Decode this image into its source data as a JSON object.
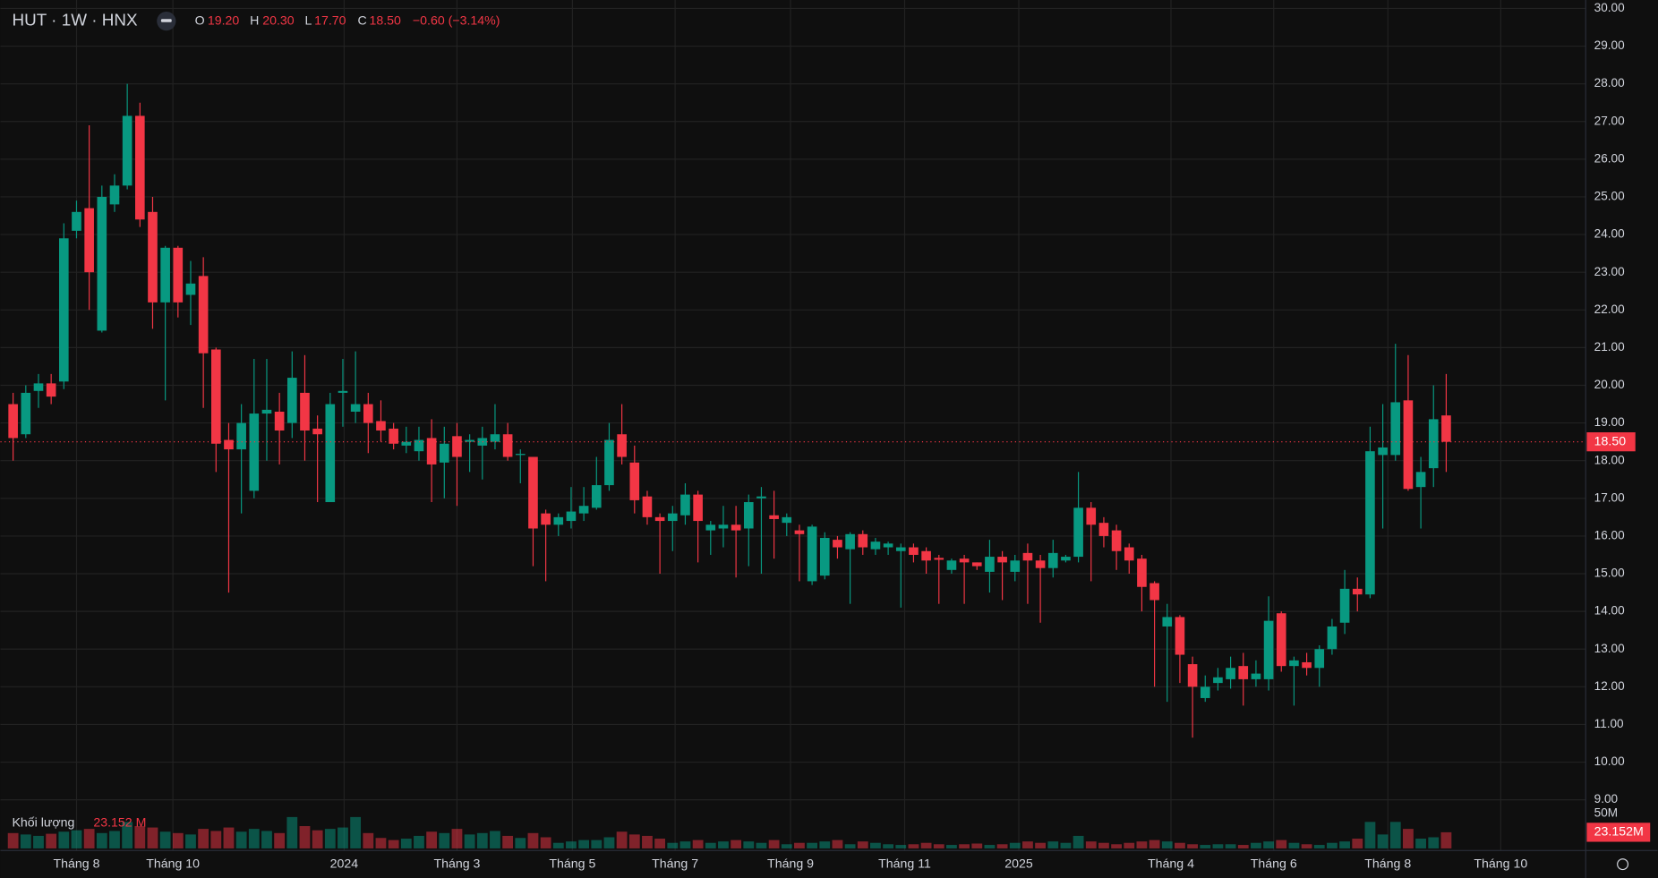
{
  "header": {
    "symbol": "HUT · 1W · HNX",
    "o_label": "O",
    "o": "19.20",
    "h_label": "H",
    "h": "20.30",
    "l_label": "L",
    "l": "17.70",
    "c_label": "C",
    "c": "18.50",
    "change": "−0.60 (−3.14%)",
    "volume_title": "Khối lượng",
    "volume_value": "23.152 M",
    "volume_axis_value": "23.152M"
  },
  "chart_data": {
    "type": "candlestick",
    "up_color": "#089981",
    "down_color": "#f23645",
    "grid": true,
    "ylim": [
      9,
      30
    ],
    "yticks": [
      {
        "value": 9,
        "label": "9.00"
      },
      {
        "value": 10,
        "label": "10.00"
      },
      {
        "value": 11,
        "label": "11.00"
      },
      {
        "value": 12,
        "label": "12.00"
      },
      {
        "value": 13,
        "label": "13.00"
      },
      {
        "value": 14,
        "label": "14.00"
      },
      {
        "value": 15,
        "label": "15.00"
      },
      {
        "value": 16,
        "label": "16.00"
      },
      {
        "value": 17,
        "label": "17.00"
      },
      {
        "value": 18,
        "label": "18.00"
      },
      {
        "value": 19,
        "label": "19.00"
      },
      {
        "value": 20,
        "label": "20.00"
      },
      {
        "value": 21,
        "label": "21.00"
      },
      {
        "value": 22,
        "label": "22.00"
      },
      {
        "value": 23,
        "label": "23.00"
      },
      {
        "value": 24,
        "label": "24.00"
      },
      {
        "value": 25,
        "label": "25.00"
      },
      {
        "value": 26,
        "label": "26.00"
      },
      {
        "value": 27,
        "label": "27.00"
      },
      {
        "value": 28,
        "label": "28.00"
      },
      {
        "value": 29,
        "label": "29.00"
      },
      {
        "value": 30,
        "label": "30.00"
      }
    ],
    "xlim": [
      -1,
      124
    ],
    "xticks": [
      {
        "value": 5,
        "label": "Tháng 8"
      },
      {
        "value": 12.6,
        "label": "Tháng 10"
      },
      {
        "value": 26.1,
        "label": "2024"
      },
      {
        "value": 35,
        "label": "Tháng 3"
      },
      {
        "value": 44.1,
        "label": "Tháng 5"
      },
      {
        "value": 52.2,
        "label": "Tháng 7"
      },
      {
        "value": 61.3,
        "label": "Tháng 9"
      },
      {
        "value": 70.3,
        "label": "Tháng 11"
      },
      {
        "value": 79.3,
        "label": "2025"
      },
      {
        "value": 91.3,
        "label": "Tháng 4"
      },
      {
        "value": 99.4,
        "label": "Tháng 6"
      },
      {
        "value": 108.4,
        "label": "Tháng 8"
      },
      {
        "value": 117.3,
        "label": "Tháng 10"
      }
    ],
    "volume_ylim": [
      0,
      50
    ],
    "volume_ticks": [
      {
        "value": 50,
        "label": "50M"
      }
    ],
    "ohlc": [
      [
        19.5,
        19.8,
        18.0,
        18.6
      ],
      [
        18.7,
        20.0,
        18.6,
        19.8
      ],
      [
        19.85,
        20.3,
        19.4,
        20.05
      ],
      [
        20.05,
        20.3,
        19.5,
        19.7
      ],
      [
        20.1,
        24.3,
        19.9,
        23.9
      ],
      [
        24.1,
        24.9,
        23.9,
        24.6
      ],
      [
        24.7,
        26.9,
        22.0,
        23.0
      ],
      [
        21.45,
        25.3,
        21.4,
        25.0
      ],
      [
        24.8,
        25.6,
        24.6,
        25.3
      ],
      [
        25.3,
        28.0,
        25.2,
        27.15
      ],
      [
        27.15,
        27.5,
        24.2,
        24.4
      ],
      [
        24.6,
        25.0,
        21.5,
        22.2
      ],
      [
        22.2,
        23.7,
        19.6,
        23.65
      ],
      [
        23.65,
        23.7,
        21.8,
        22.2
      ],
      [
        22.4,
        23.3,
        21.6,
        22.7
      ],
      [
        22.9,
        23.4,
        19.4,
        20.85
      ],
      [
        20.95,
        21.0,
        17.7,
        18.45
      ],
      [
        18.55,
        19.0,
        14.5,
        18.3
      ],
      [
        18.3,
        19.5,
        16.6,
        19.0
      ],
      [
        17.2,
        20.7,
        17.0,
        19.25
      ],
      [
        19.25,
        20.7,
        18.0,
        19.35
      ],
      [
        19.3,
        19.8,
        17.9,
        18.8
      ],
      [
        19.0,
        20.9,
        18.6,
        20.2
      ],
      [
        19.8,
        20.8,
        18.0,
        18.8
      ],
      [
        18.85,
        19.2,
        16.9,
        18.7
      ],
      [
        16.9,
        19.8,
        16.9,
        19.5
      ],
      [
        19.8,
        20.7,
        18.9,
        19.85
      ],
      [
        19.3,
        20.9,
        19.0,
        19.5
      ],
      [
        19.5,
        19.8,
        18.2,
        19.0
      ],
      [
        19.05,
        19.6,
        18.5,
        18.8
      ],
      [
        18.85,
        19.0,
        18.3,
        18.45
      ],
      [
        18.4,
        18.9,
        18.2,
        18.5
      ],
      [
        18.25,
        18.9,
        18.0,
        18.55
      ],
      [
        18.6,
        19.1,
        16.9,
        17.9
      ],
      [
        17.95,
        18.9,
        17.0,
        18.45
      ],
      [
        18.65,
        19.0,
        16.8,
        18.1
      ],
      [
        18.5,
        18.7,
        17.7,
        18.55
      ],
      [
        18.4,
        18.9,
        17.5,
        18.6
      ],
      [
        18.5,
        19.5,
        18.3,
        18.7
      ],
      [
        18.7,
        19.0,
        18.0,
        18.1
      ],
      [
        18.15,
        18.3,
        17.4,
        18.18
      ],
      [
        18.1,
        18.1,
        15.2,
        16.2
      ],
      [
        16.6,
        16.7,
        14.8,
        16.3
      ],
      [
        16.3,
        16.6,
        16.0,
        16.5
      ],
      [
        16.4,
        17.3,
        16.2,
        16.65
      ],
      [
        16.6,
        17.3,
        16.4,
        16.8
      ],
      [
        16.75,
        18.1,
        16.7,
        17.35
      ],
      [
        17.35,
        19.0,
        17.2,
        18.55
      ],
      [
        18.7,
        19.5,
        17.9,
        18.1
      ],
      [
        17.95,
        18.4,
        16.6,
        16.95
      ],
      [
        17.05,
        17.2,
        16.3,
        16.5
      ],
      [
        16.5,
        16.6,
        15.0,
        16.4
      ],
      [
        16.4,
        16.8,
        15.6,
        16.6
      ],
      [
        16.55,
        17.4,
        16.3,
        17.1
      ],
      [
        17.1,
        17.2,
        15.3,
        16.4
      ],
      [
        16.15,
        16.4,
        15.5,
        16.3
      ],
      [
        16.2,
        16.8,
        15.7,
        16.3
      ],
      [
        16.3,
        16.8,
        14.9,
        16.15
      ],
      [
        16.2,
        17.1,
        15.2,
        16.9
      ],
      [
        17.0,
        17.3,
        15.0,
        17.05
      ],
      [
        16.55,
        17.2,
        15.4,
        16.45
      ],
      [
        16.35,
        16.6,
        16.0,
        16.5
      ],
      [
        16.15,
        16.3,
        14.8,
        16.05
      ],
      [
        14.8,
        16.3,
        14.7,
        16.25
      ],
      [
        14.95,
        16.1,
        14.85,
        15.95
      ],
      [
        15.9,
        16.0,
        15.4,
        15.7
      ],
      [
        15.65,
        16.1,
        14.2,
        16.05
      ],
      [
        16.05,
        16.15,
        15.5,
        15.7
      ],
      [
        15.65,
        15.95,
        15.5,
        15.85
      ],
      [
        15.7,
        15.85,
        15.5,
        15.8
      ],
      [
        15.6,
        15.8,
        14.1,
        15.7
      ],
      [
        15.7,
        15.8,
        15.3,
        15.5
      ],
      [
        15.6,
        15.7,
        15.0,
        15.35
      ],
      [
        15.42,
        15.5,
        14.2,
        15.37
      ],
      [
        15.1,
        15.4,
        15.0,
        15.35
      ],
      [
        15.4,
        15.5,
        14.2,
        15.3
      ],
      [
        15.3,
        15.3,
        15.1,
        15.2
      ],
      [
        15.05,
        15.9,
        14.5,
        15.45
      ],
      [
        15.45,
        15.6,
        14.3,
        15.3
      ],
      [
        15.05,
        15.5,
        14.8,
        15.35
      ],
      [
        15.55,
        15.8,
        14.2,
        15.35
      ],
      [
        15.35,
        15.5,
        13.7,
        15.15
      ],
      [
        15.15,
        15.9,
        14.9,
        15.55
      ],
      [
        15.35,
        15.5,
        15.3,
        15.45
      ],
      [
        15.45,
        17.7,
        15.3,
        16.75
      ],
      [
        16.75,
        16.9,
        14.8,
        16.3
      ],
      [
        16.35,
        16.5,
        15.7,
        16.0
      ],
      [
        16.15,
        16.3,
        15.1,
        15.6
      ],
      [
        15.7,
        15.8,
        15.0,
        15.35
      ],
      [
        15.4,
        15.5,
        14.0,
        14.65
      ],
      [
        14.75,
        14.8,
        12.0,
        14.3
      ],
      [
        13.6,
        14.2,
        11.6,
        13.85
      ],
      [
        13.85,
        13.9,
        12.1,
        12.85
      ],
      [
        12.6,
        12.8,
        10.65,
        12.0
      ],
      [
        11.7,
        12.3,
        11.6,
        12.0
      ],
      [
        12.1,
        12.5,
        11.9,
        12.25
      ],
      [
        12.2,
        12.8,
        11.95,
        12.5
      ],
      [
        12.55,
        12.9,
        11.5,
        12.2
      ],
      [
        12.2,
        12.7,
        12.0,
        12.35
      ],
      [
        12.2,
        14.4,
        11.9,
        13.75
      ],
      [
        13.95,
        14.0,
        12.4,
        12.55
      ],
      [
        12.55,
        12.8,
        11.5,
        12.7
      ],
      [
        12.65,
        12.9,
        12.3,
        12.5
      ],
      [
        12.5,
        13.1,
        12.0,
        13.0
      ],
      [
        13.0,
        13.8,
        12.85,
        13.6
      ],
      [
        13.7,
        15.1,
        13.4,
        14.6
      ],
      [
        14.6,
        14.9,
        14.0,
        14.45
      ],
      [
        14.45,
        18.9,
        14.35,
        18.25
      ],
      [
        18.15,
        19.5,
        16.2,
        18.35
      ],
      [
        18.15,
        21.1,
        18.0,
        19.55
      ],
      [
        19.6,
        20.8,
        17.2,
        17.25
      ],
      [
        17.3,
        18.1,
        16.2,
        17.7
      ],
      [
        17.8,
        20.0,
        17.3,
        19.1
      ],
      [
        19.2,
        20.3,
        17.7,
        18.5
      ]
    ],
    "volume": [
      22,
      20,
      18,
      21,
      24,
      26,
      28,
      22,
      25,
      38,
      32,
      30,
      24,
      22,
      20,
      28,
      25,
      30,
      24,
      28,
      25,
      22,
      45,
      32,
      26,
      28,
      30,
      45,
      22,
      15,
      12,
      14,
      18,
      24,
      22,
      28,
      20,
      22,
      25,
      18,
      15,
      22,
      16,
      8,
      10,
      12,
      12,
      16,
      24,
      20,
      18,
      14,
      8,
      10,
      12,
      8,
      10,
      12,
      10,
      8,
      12,
      6,
      8,
      8,
      10,
      12,
      6,
      10,
      8,
      6,
      5,
      6,
      8,
      6,
      5,
      6,
      7,
      5,
      6,
      8,
      10,
      8,
      10,
      8,
      18,
      10,
      8,
      6,
      8,
      10,
      12,
      10,
      8,
      6,
      5,
      6,
      6,
      5,
      8,
      10,
      12,
      8,
      6,
      5,
      8,
      10,
      14,
      38,
      20,
      38,
      28,
      14,
      16,
      23.152
    ]
  }
}
